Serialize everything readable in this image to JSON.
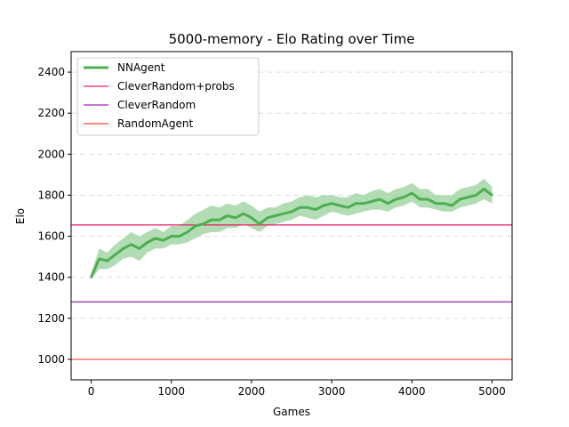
{
  "chart_data": {
    "type": "line",
    "title": "5000-memory - Elo Rating over Time",
    "xlabel": "Games",
    "ylabel": "Elo",
    "xlim": [
      -250,
      5250
    ],
    "ylim": [
      900,
      2500
    ],
    "xticks": [
      0,
      1000,
      2000,
      3000,
      4000,
      5000
    ],
    "yticks": [
      1000,
      1200,
      1400,
      1600,
      1800,
      2000,
      2200,
      2400
    ],
    "xtick_labels": [
      "0",
      "1000",
      "2000",
      "3000",
      "4000",
      "5000"
    ],
    "ytick_labels": [
      "1000",
      "1200",
      "1400",
      "1600",
      "1800",
      "2000",
      "2200",
      "2400"
    ],
    "grid": "y-dashed",
    "legend_position": "top-left",
    "series": [
      {
        "name": "NNAgent",
        "type": "line",
        "color": "#4caf50",
        "band_color": "#a5d6a7",
        "x": [
          0,
          100,
          200,
          300,
          400,
          500,
          600,
          700,
          800,
          900,
          1000,
          1100,
          1200,
          1300,
          1400,
          1500,
          1600,
          1700,
          1800,
          1900,
          2000,
          2100,
          2200,
          2300,
          2400,
          2500,
          2600,
          2700,
          2800,
          2900,
          3000,
          3100,
          3200,
          3300,
          3400,
          3500,
          3600,
          3700,
          3800,
          3900,
          4000,
          4100,
          4200,
          4300,
          4400,
          4500,
          4600,
          4700,
          4800,
          4900,
          5000
        ],
        "y": [
          1400,
          1490,
          1480,
          1510,
          1540,
          1560,
          1540,
          1570,
          1590,
          1580,
          1600,
          1600,
          1620,
          1650,
          1660,
          1680,
          1680,
          1700,
          1690,
          1710,
          1690,
          1660,
          1690,
          1700,
          1710,
          1720,
          1740,
          1740,
          1730,
          1750,
          1760,
          1750,
          1740,
          1760,
          1760,
          1770,
          1780,
          1760,
          1780,
          1790,
          1810,
          1780,
          1780,
          1760,
          1760,
          1750,
          1780,
          1790,
          1800,
          1830,
          1800
        ],
        "lower": [
          1390,
          1440,
          1440,
          1460,
          1490,
          1500,
          1480,
          1520,
          1540,
          1540,
          1560,
          1560,
          1570,
          1590,
          1610,
          1620,
          1620,
          1640,
          1640,
          1660,
          1640,
          1620,
          1650,
          1660,
          1670,
          1680,
          1700,
          1690,
          1680,
          1700,
          1720,
          1710,
          1700,
          1710,
          1720,
          1730,
          1730,
          1720,
          1740,
          1750,
          1770,
          1740,
          1740,
          1730,
          1720,
          1720,
          1740,
          1750,
          1760,
          1780,
          1760
        ],
        "upper": [
          1420,
          1540,
          1520,
          1560,
          1590,
          1620,
          1600,
          1620,
          1640,
          1620,
          1650,
          1650,
          1680,
          1710,
          1730,
          1750,
          1740,
          1760,
          1750,
          1770,
          1750,
          1720,
          1740,
          1740,
          1760,
          1770,
          1790,
          1800,
          1790,
          1800,
          1800,
          1790,
          1790,
          1810,
          1800,
          1820,
          1830,
          1810,
          1830,
          1840,
          1860,
          1830,
          1830,
          1800,
          1800,
          1800,
          1830,
          1840,
          1850,
          1880,
          1840
        ]
      },
      {
        "name": "CleverRandom+probs",
        "type": "hline",
        "color": "#e91e63",
        "value": 1655
      },
      {
        "name": "CleverRandom",
        "type": "hline",
        "color": "#9c27b0",
        "value": 1280
      },
      {
        "name": "RandomAgent",
        "type": "hline",
        "color": "#f44336",
        "value": 1000
      }
    ]
  }
}
